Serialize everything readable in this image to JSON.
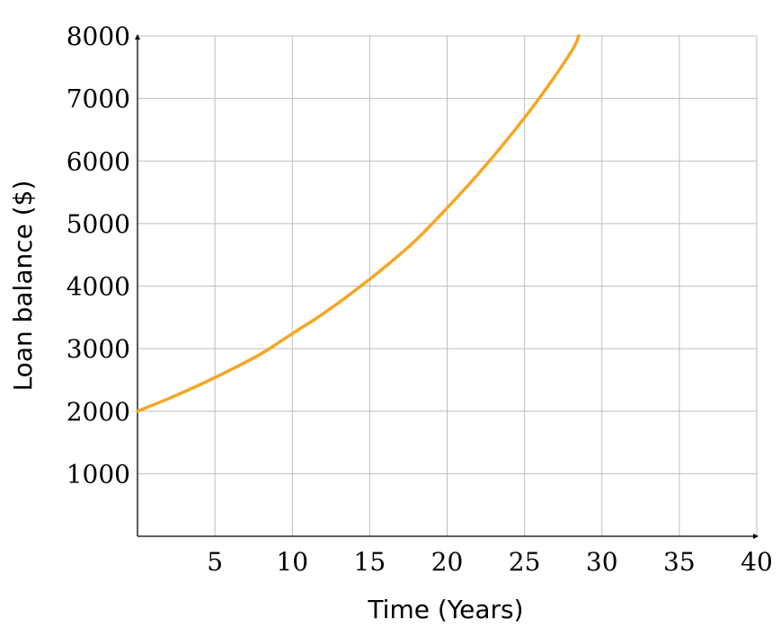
{
  "chart_data": {
    "type": "line",
    "title": "",
    "xlabel": "Time (Years)",
    "ylabel": "Loan balance ($)",
    "xlim": [
      0,
      40
    ],
    "ylim": [
      0,
      8000
    ],
    "grid": true,
    "x_ticks": [
      5,
      10,
      15,
      20,
      25,
      30,
      35,
      40
    ],
    "x_tick_labels": [
      "5",
      "10",
      "15",
      "20",
      "25",
      "30",
      "35",
      "40"
    ],
    "y_ticks": [
      1000,
      2000,
      3000,
      4000,
      5000,
      6000,
      7000,
      8000
    ],
    "y_tick_labels": [
      "1000",
      "2000",
      "3000",
      "4000",
      "5000",
      "6000",
      "7000",
      "8000"
    ],
    "series": [
      {
        "color": "#f5a623",
        "x": [
          0,
          2,
          4,
          6,
          8,
          10,
          12,
          14,
          16,
          18,
          20,
          22,
          24,
          26,
          28,
          28.5
        ],
        "y": [
          2000,
          2200,
          2420,
          2660,
          2920,
          3240,
          3560,
          3920,
          4310,
          4740,
          5250,
          5790,
          6380,
          7020,
          7740,
          8000
        ]
      }
    ]
  }
}
